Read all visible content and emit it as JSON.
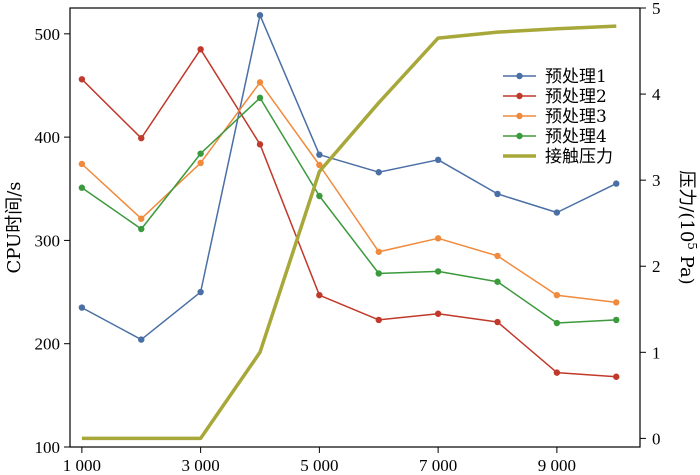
{
  "chart_data": {
    "type": "line",
    "xlabel": "",
    "ylabel": "CPU时间/s",
    "y2label_main": "压力/(10",
    "y2label_sup": "5",
    "y2label_end": " Pa)",
    "xlim": [
      800,
      10400
    ],
    "ylim": [
      100,
      525
    ],
    "y2lim": [
      -0.1,
      5.0
    ],
    "x_ticks": [
      1000,
      3000,
      5000,
      7000,
      9000
    ],
    "x_tick_labels": [
      "1 000",
      "3 000",
      "5 000",
      "7 000",
      "9 000"
    ],
    "y_ticks": [
      100,
      200,
      300,
      400,
      500
    ],
    "y_tick_labels": [
      "100",
      "200",
      "300",
      "400",
      "500"
    ],
    "y2_ticks": [
      0,
      1,
      2,
      3,
      4,
      5
    ],
    "y2_tick_labels": [
      "0",
      "1",
      "2",
      "3",
      "4",
      "5"
    ],
    "legend_position": "upper-right",
    "grid": false,
    "x": [
      1000,
      2000,
      3000,
      4000,
      5000,
      6000,
      7000,
      8000,
      9000,
      10000
    ],
    "series": [
      {
        "name": "预处理1",
        "axis": "left",
        "color": "#4a6fa5",
        "marker": true,
        "width": 1.5,
        "values": [
          235,
          204,
          250,
          518,
          383,
          366,
          378,
          345,
          327,
          355
        ]
      },
      {
        "name": "预处理2",
        "axis": "left",
        "color": "#c0392b",
        "marker": true,
        "width": 1.5,
        "values": [
          456,
          399,
          485,
          393,
          247,
          223,
          229,
          221,
          172,
          168
        ]
      },
      {
        "name": "预处理3",
        "axis": "left",
        "color": "#f08a3c",
        "marker": true,
        "width": 1.5,
        "values": [
          374,
          321,
          375,
          453,
          373,
          289,
          302,
          285,
          247,
          240
        ]
      },
      {
        "name": "预处理4",
        "axis": "left",
        "color": "#3b9a3b",
        "marker": true,
        "width": 1.5,
        "values": [
          351,
          311,
          384,
          438,
          343,
          268,
          270,
          260,
          220,
          223
        ]
      },
      {
        "name": "接触压力",
        "axis": "right",
        "color": "#a8a83a",
        "marker": false,
        "width": 3.5,
        "values": [
          0,
          0,
          0,
          1.0,
          3.1,
          3.9,
          4.65,
          4.72,
          4.76,
          4.79
        ]
      }
    ]
  }
}
